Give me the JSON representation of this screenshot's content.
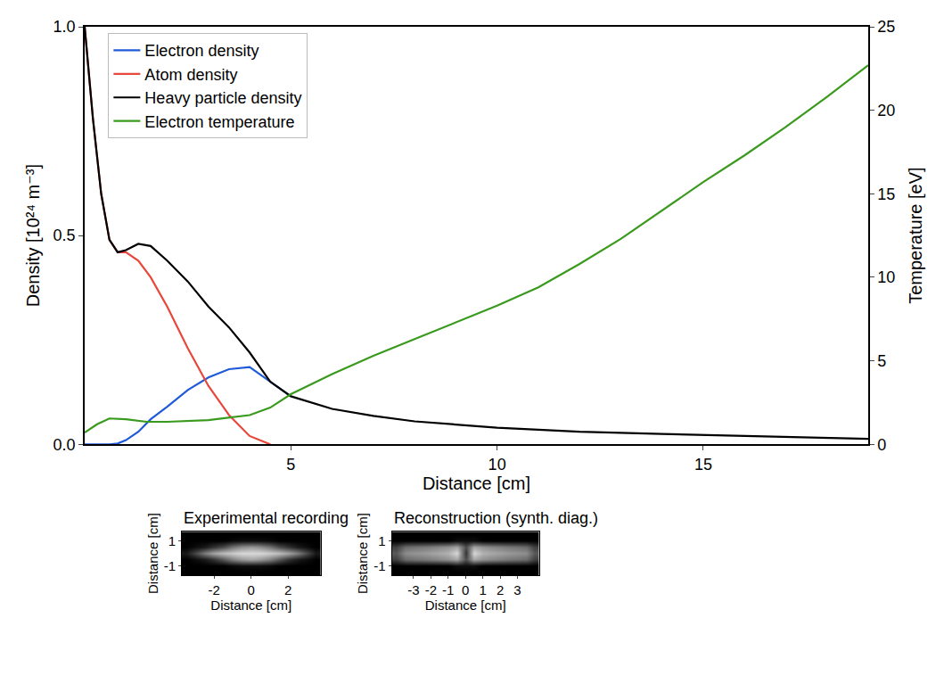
{
  "chart_data": [
    {
      "type": "line",
      "xlabel": "Distance [cm]",
      "ylabel": "Density [10²⁴ m⁻³]",
      "y2label": "Temperature [eV]",
      "x": [
        0,
        0.2,
        0.4,
        0.6,
        0.8,
        1.0,
        1.3,
        1.6,
        2,
        2.5,
        3,
        3.5,
        4,
        4.5,
        5,
        6,
        7,
        8,
        10,
        12,
        14,
        16,
        19
      ],
      "series": [
        {
          "name": "Electron density",
          "color": "#1f5bd8",
          "values": [
            0,
            0,
            0,
            0,
            0.002,
            0.01,
            0.03,
            0.06,
            0.09,
            0.13,
            0.16,
            0.18,
            0.185,
            0.15,
            0.115,
            null,
            null,
            null,
            null,
            null,
            null,
            null,
            null
          ]
        },
        {
          "name": "Atom density",
          "color": "#e8473b",
          "values": [
            1.0,
            0.78,
            0.6,
            0.49,
            0.46,
            0.46,
            0.44,
            0.4,
            0.33,
            0.23,
            0.14,
            0.07,
            0.02,
            0,
            null,
            null,
            null,
            null,
            null,
            null,
            null,
            null,
            null
          ]
        },
        {
          "name": "Heavy particle density",
          "color": "#000000",
          "values": [
            1.0,
            0.78,
            0.6,
            0.49,
            0.46,
            0.465,
            0.48,
            0.475,
            0.44,
            0.39,
            0.33,
            0.28,
            0.22,
            0.15,
            0.115,
            0.085,
            0.068,
            0.055,
            0.04,
            0.03,
            0.025,
            0.02,
            0.013
          ]
        },
        {
          "name": "Electron temperature",
          "color": "#3a9a1e",
          "axis": "y2",
          "x": [
            0,
            0.3,
            0.6,
            1,
            1.5,
            2,
            3,
            3.5,
            4,
            4.5,
            5,
            6,
            7,
            8,
            9,
            10,
            11,
            12,
            13,
            14,
            15,
            16,
            17,
            18,
            19
          ],
          "values": [
            0.7,
            1.2,
            1.55,
            1.5,
            1.35,
            1.35,
            1.45,
            1.6,
            1.75,
            2.2,
            3.0,
            4.2,
            5.3,
            6.3,
            7.3,
            8.3,
            9.4,
            10.8,
            12.3,
            14.0,
            15.7,
            17.3,
            19.0,
            20.8,
            22.7
          ]
        }
      ],
      "xlim": [
        0,
        19
      ],
      "xticks": [
        5,
        10,
        15
      ],
      "ylim": [
        0,
        1.0
      ],
      "yticks": [
        {
          "value": 0,
          "label": "0.0"
        },
        {
          "value": 0.5,
          "label": "0.5"
        },
        {
          "value": 1.0,
          "label": "1.0"
        }
      ],
      "y2lim": [
        0,
        25
      ],
      "y2ticks": [
        0,
        5,
        10,
        15,
        20,
        25
      ],
      "legend": "upper left",
      "grid": false
    },
    {
      "type": "heatmap",
      "title": "Experimental recording",
      "xlabel": "Distance [cm]",
      "ylabel": "Distance [cm]",
      "x": [
        -3.5,
        -3,
        -2.5,
        -2,
        -1.5,
        -1,
        -0.5,
        0,
        0.5,
        1,
        1.5,
        2,
        2.5,
        3,
        3.5
      ],
      "y": [
        -1.5,
        -1,
        -0.5,
        0,
        0.5,
        1,
        1.5
      ],
      "z": [
        [
          0,
          0,
          0,
          0,
          0,
          0,
          0,
          0,
          0,
          0,
          0,
          0,
          0,
          0,
          0
        ],
        [
          0,
          0,
          0,
          0,
          0,
          0.03,
          0.05,
          0.05,
          0.05,
          0.03,
          0,
          0,
          0,
          0,
          0
        ],
        [
          0,
          0.05,
          0.1,
          0.2,
          0.35,
          0.5,
          0.6,
          0.65,
          0.6,
          0.5,
          0.35,
          0.2,
          0.1,
          0.05,
          0
        ],
        [
          0.1,
          0.3,
          0.5,
          0.65,
          0.75,
          0.8,
          0.85,
          0.85,
          0.85,
          0.8,
          0.75,
          0.65,
          0.5,
          0.3,
          0.1
        ],
        [
          0,
          0.05,
          0.1,
          0.2,
          0.3,
          0.45,
          0.55,
          0.6,
          0.55,
          0.45,
          0.3,
          0.2,
          0.1,
          0.05,
          0
        ],
        [
          0,
          0,
          0,
          0,
          0,
          0.03,
          0.05,
          0.05,
          0.05,
          0.03,
          0,
          0,
          0,
          0,
          0
        ],
        [
          0,
          0,
          0,
          0,
          0,
          0,
          0,
          0,
          0,
          0,
          0,
          0,
          0,
          0,
          0
        ]
      ],
      "zlim": [
        0,
        1
      ],
      "xlim": [
        -3.75,
        3.75
      ],
      "xticks": [
        -2,
        0,
        2
      ],
      "ylim": [
        -1.75,
        1.75
      ],
      "yticks": [
        -1,
        1
      ]
    },
    {
      "type": "heatmap",
      "title": "Reconstruction (synth. diag.)",
      "xlabel": "Distance [cm]",
      "ylabel": "Distance [cm]",
      "x": [
        -4,
        -3.5,
        -3,
        -2.5,
        -2,
        -1.5,
        -1,
        -0.5,
        0,
        0.5,
        1,
        1.5,
        2,
        2.5,
        3,
        3.5,
        4
      ],
      "y": [
        -1.5,
        -1,
        -0.5,
        0,
        0.5,
        1,
        1.5
      ],
      "z": [
        [
          0,
          0,
          0,
          0,
          0,
          0,
          0,
          0,
          0,
          0,
          0,
          0,
          0,
          0,
          0,
          0,
          0
        ],
        [
          0,
          0,
          0,
          0,
          0,
          0,
          0,
          0.05,
          0.05,
          0.05,
          0,
          0,
          0,
          0,
          0,
          0,
          0
        ],
        [
          0.25,
          0.42,
          0.45,
          0.47,
          0.5,
          0.53,
          0.57,
          0.65,
          0.3,
          0.65,
          0.57,
          0.53,
          0.5,
          0.47,
          0.45,
          0.42,
          0.25
        ],
        [
          0.35,
          0.55,
          0.58,
          0.6,
          0.63,
          0.66,
          0.7,
          0.85,
          0.2,
          0.85,
          0.7,
          0.66,
          0.63,
          0.6,
          0.58,
          0.55,
          0.35
        ],
        [
          0.25,
          0.42,
          0.45,
          0.47,
          0.5,
          0.53,
          0.57,
          0.65,
          0.3,
          0.65,
          0.57,
          0.53,
          0.5,
          0.47,
          0.45,
          0.42,
          0.25
        ],
        [
          0,
          0,
          0,
          0,
          0,
          0,
          0,
          0.05,
          0.05,
          0.05,
          0,
          0,
          0,
          0,
          0,
          0,
          0
        ],
        [
          0,
          0,
          0,
          0,
          0,
          0,
          0,
          0,
          0,
          0,
          0,
          0,
          0,
          0,
          0,
          0,
          0
        ]
      ],
      "zlim": [
        0,
        1
      ],
      "xlim": [
        -4.25,
        4.25
      ],
      "xticks": [
        -3,
        -2,
        -1,
        0,
        1,
        2,
        3
      ],
      "ylim": [
        -1.75,
        1.75
      ],
      "yticks": [
        -1,
        1
      ]
    }
  ]
}
